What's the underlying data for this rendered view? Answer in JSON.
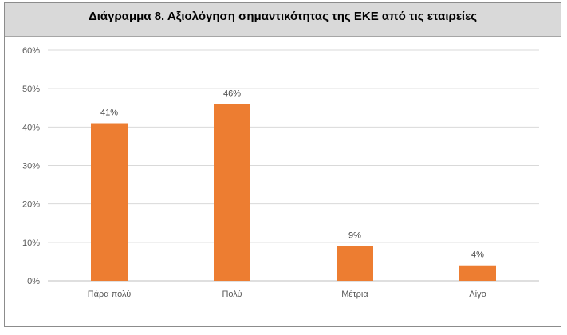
{
  "chart_data": {
    "type": "bar",
    "title": "Διάγραμμα 8. Αξιολόγηση σημαντικότητας της ΕΚΕ από τις εταιρείες",
    "categories": [
      "Πάρα πολύ",
      "Πολύ",
      "Μέτρια",
      "Λίγο"
    ],
    "values": [
      41,
      46,
      9,
      4
    ],
    "data_labels": [
      "41%",
      "46%",
      "9%",
      "4%"
    ],
    "ylim": [
      0,
      60
    ],
    "yticks": [
      0,
      10,
      20,
      30,
      40,
      50,
      60
    ],
    "ytick_labels": [
      "0%",
      "10%",
      "20%",
      "30%",
      "40%",
      "50%",
      "60%"
    ],
    "bar_color": "#ed7d31",
    "grid": true,
    "legend": "none"
  }
}
